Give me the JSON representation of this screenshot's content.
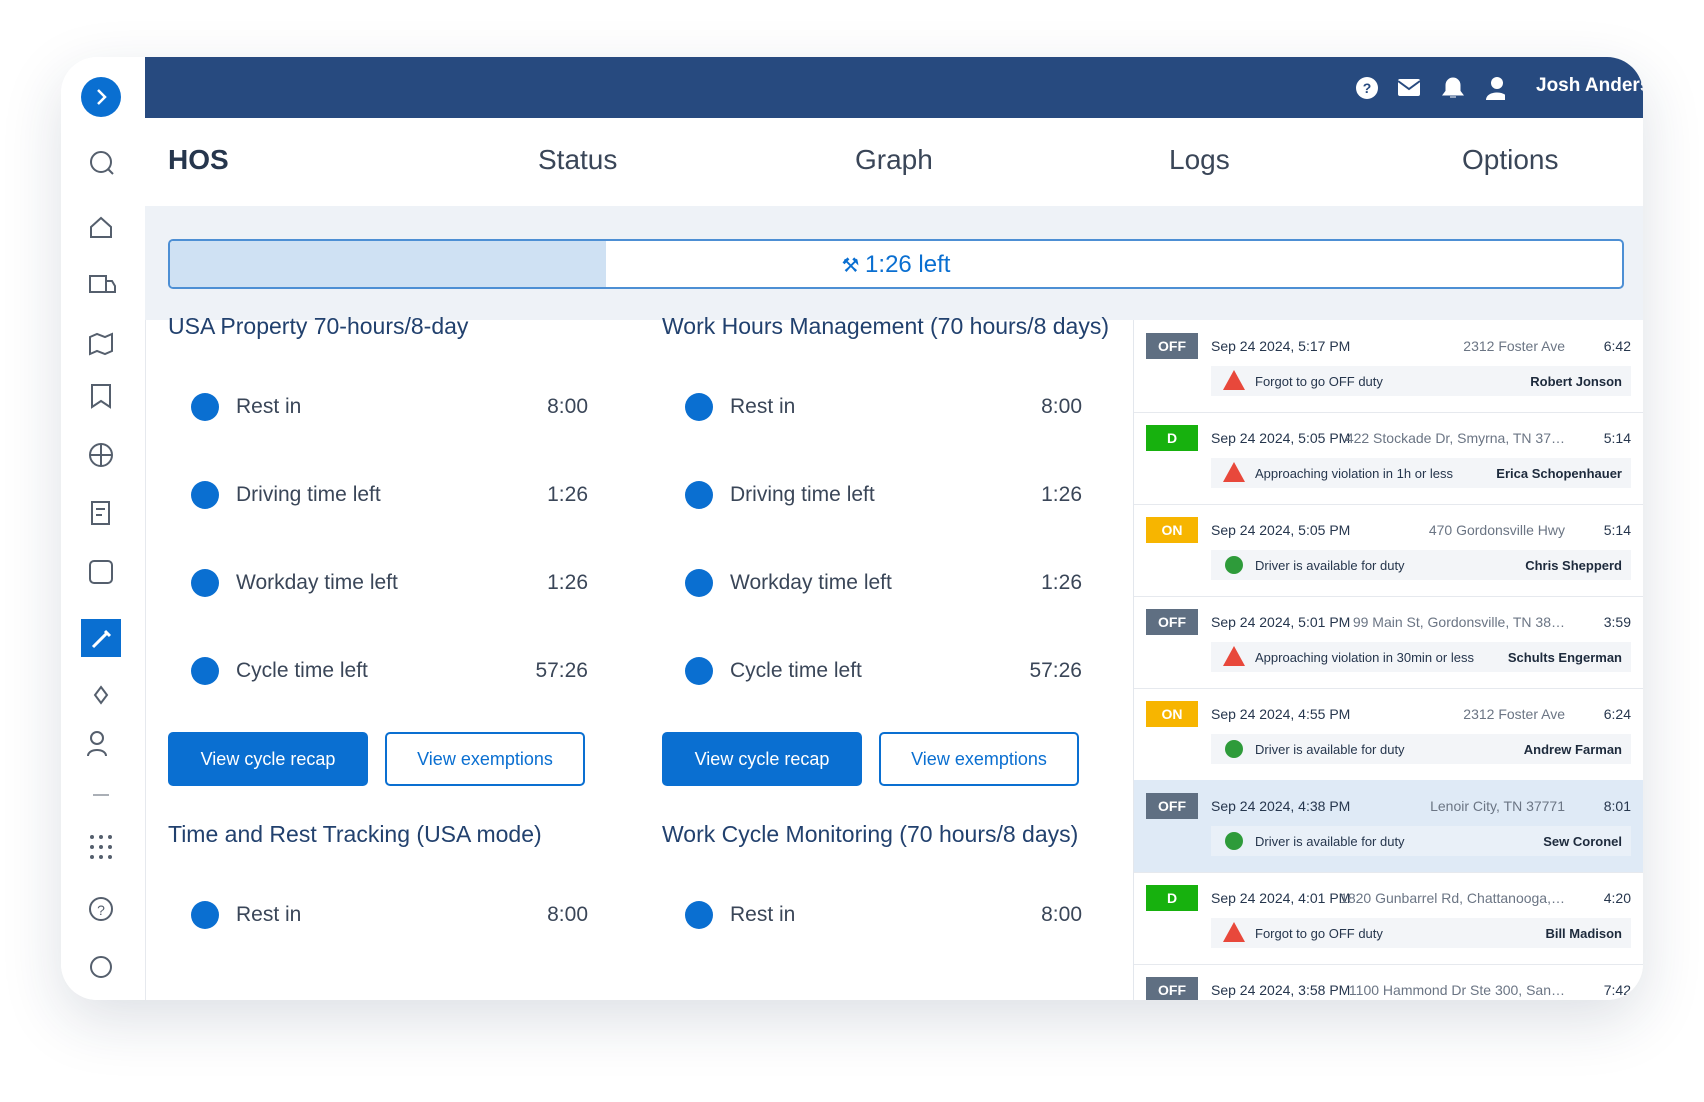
{
  "header": {
    "user": "Josh Anderson"
  },
  "tabs": [
    "HOS",
    "Status",
    "Graph",
    "Logs",
    "Options"
  ],
  "progress": {
    "label": "1:26 left"
  },
  "panels": [
    {
      "title": "USA Property 70-hours/8-day",
      "rows": [
        {
          "label": "Rest in",
          "value": "8:00"
        },
        {
          "label": "Driving time left",
          "value": "1:26"
        },
        {
          "label": "Workday time left",
          "value": "1:26"
        },
        {
          "label": "Cycle time left",
          "value": "57:26"
        }
      ],
      "buttons": [
        "View cycle recap",
        "View exemptions"
      ]
    },
    {
      "title": "Work Hours Management (70 hours/8 days)",
      "rows": [
        {
          "label": "Rest in",
          "value": "8:00"
        },
        {
          "label": "Driving time left",
          "value": "1:26"
        },
        {
          "label": "Workday time left",
          "value": "1:26"
        },
        {
          "label": "Cycle time left",
          "value": "57:26"
        }
      ],
      "buttons": [
        "View cycle recap",
        "View exemptions"
      ]
    },
    {
      "title": "Time and Rest Tracking (USA mode)",
      "rows": [
        {
          "label": "Rest in",
          "value": "8:00"
        }
      ]
    },
    {
      "title": "Work Cycle Monitoring (70 hours/8 days)",
      "rows": [
        {
          "label": "Rest in",
          "value": "8:00"
        }
      ]
    }
  ],
  "logs": [
    {
      "status": "OFF",
      "time": "Sep 24 2024, 5:17 PM",
      "address": "2312 Foster Ave",
      "duration": "6:42",
      "message": "Forgot to go OFF duty",
      "driver": "Robert Jonson",
      "kind": "warning"
    },
    {
      "status": "D",
      "time": "Sep 24 2024, 5:05 PM",
      "address": "422 Stockade Dr, Smyrna, TN 37…",
      "duration": "5:14",
      "message": "Approaching violation in 1h or less",
      "driver": "Erica Schopenhauer",
      "kind": "warning"
    },
    {
      "status": "ON",
      "time": "Sep 24 2024, 5:05 PM",
      "address": "470 Gordonsville Hwy",
      "duration": "5:14",
      "message": "Driver is available for duty",
      "driver": "Chris Shepperd",
      "kind": "ok"
    },
    {
      "status": "OFF",
      "time": "Sep 24 2024, 5:01 PM",
      "address": "99 Main St, Gordonsville, TN 38…",
      "duration": "3:59",
      "message": "Approaching violation in 30min or less",
      "driver": "Schults Engerman",
      "kind": "warning"
    },
    {
      "status": "ON",
      "time": "Sep 24 2024, 4:55 PM",
      "address": "2312 Foster Ave",
      "duration": "6:24",
      "message": "Driver is available for duty",
      "driver": "Andrew Farman",
      "kind": "ok"
    },
    {
      "status": "OFF",
      "time": "Sep 24 2024, 4:38 PM",
      "address": "Lenoir City, TN 37771",
      "duration": "8:01",
      "message": "Driver is available for duty",
      "driver": "Sew Coronel",
      "kind": "ok",
      "selected": true
    },
    {
      "status": "D",
      "time": "Sep 24 2024, 4:01 PM",
      "address": "1820 Gunbarrel Rd, Chattanooga,…",
      "duration": "4:20",
      "message": "Forgot to go OFF duty",
      "driver": "Bill Madison",
      "kind": "warning"
    },
    {
      "status": "OFF",
      "time": "Sep 24 2024, 3:58 PM",
      "address": "1100 Hammond Dr Ste 300, San…",
      "duration": "7:42"
    }
  ]
}
